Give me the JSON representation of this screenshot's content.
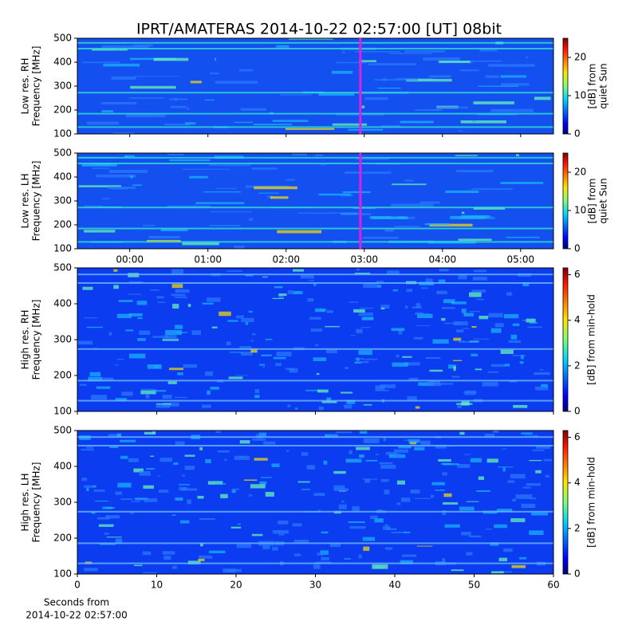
{
  "title": "IPRT/AMATERAS 2014-10-22 02:57:00 [UT]   08bit",
  "chart_data": [
    {
      "type": "heatmap",
      "ylabel": [
        "Low res. RH",
        "Frequency [MHz]"
      ],
      "ylim": [
        100,
        500
      ],
      "yticks": [
        100,
        200,
        300,
        400,
        500
      ],
      "xlim": [
        -0.67,
        5.42
      ],
      "xticks": [
        {
          "value": 0,
          "label": "00:00"
        },
        {
          "value": 1,
          "label": "01:00"
        },
        {
          "value": 2,
          "label": "02:00"
        },
        {
          "value": 3,
          "label": "03:00"
        },
        {
          "value": 4,
          "label": "04:00"
        },
        {
          "value": 5,
          "label": "05:00"
        }
      ],
      "xticklabels": false,
      "marker_x": 2.95,
      "marker_color": "#e020e0",
      "colorbar": {
        "label": [
          "[dB] from",
          "quiet Sun"
        ],
        "lim": [
          0,
          25
        ],
        "ticks": [
          0,
          10,
          20
        ]
      }
    },
    {
      "type": "heatmap",
      "ylabel": [
        "Low res. LH",
        "Frequency [MHz]"
      ],
      "ylim": [
        100,
        500
      ],
      "yticks": [
        100,
        200,
        300,
        400,
        500
      ],
      "xlim": [
        -0.67,
        5.42
      ],
      "xticks": [
        {
          "value": 0,
          "label": "00:00"
        },
        {
          "value": 1,
          "label": "01:00"
        },
        {
          "value": 2,
          "label": "02:00"
        },
        {
          "value": 3,
          "label": "03:00"
        },
        {
          "value": 4,
          "label": "04:00"
        },
        {
          "value": 5,
          "label": "05:00"
        }
      ],
      "xticklabels": true,
      "marker_x": 2.95,
      "marker_color": "#e020e0",
      "colorbar": {
        "label": [
          "[dB] from",
          "quiet Sun"
        ],
        "lim": [
          0,
          25
        ],
        "ticks": [
          0,
          10,
          20
        ]
      }
    },
    {
      "type": "heatmap",
      "ylabel": [
        "High res. RH",
        "Frequency [MHz]"
      ],
      "ylim": [
        100,
        500
      ],
      "yticks": [
        100,
        200,
        300,
        400,
        500
      ],
      "xlim": [
        0,
        60
      ],
      "xticks": [
        0,
        10,
        20,
        30,
        40,
        50,
        60
      ],
      "xticklabels": false,
      "colorbar": {
        "label": [
          "[dB] from min-hold"
        ],
        "lim": [
          0,
          6.3
        ],
        "ticks": [
          0,
          2,
          4,
          6
        ]
      }
    },
    {
      "type": "heatmap",
      "ylabel": [
        "High res. LH",
        "Frequency [MHz]"
      ],
      "ylim": [
        100,
        500
      ],
      "yticks": [
        100,
        200,
        300,
        400,
        500
      ],
      "xlim": [
        0,
        60
      ],
      "xticks": [
        0,
        10,
        20,
        30,
        40,
        50,
        60
      ],
      "xticklabels": true,
      "xlabel": [
        "Seconds from",
        "2014-10-22 02:57:00"
      ],
      "colorbar": {
        "label": [
          "[dB] from min-hold"
        ],
        "lim": [
          0,
          6.3
        ],
        "ticks": [
          0,
          2,
          4,
          6
        ]
      }
    }
  ]
}
